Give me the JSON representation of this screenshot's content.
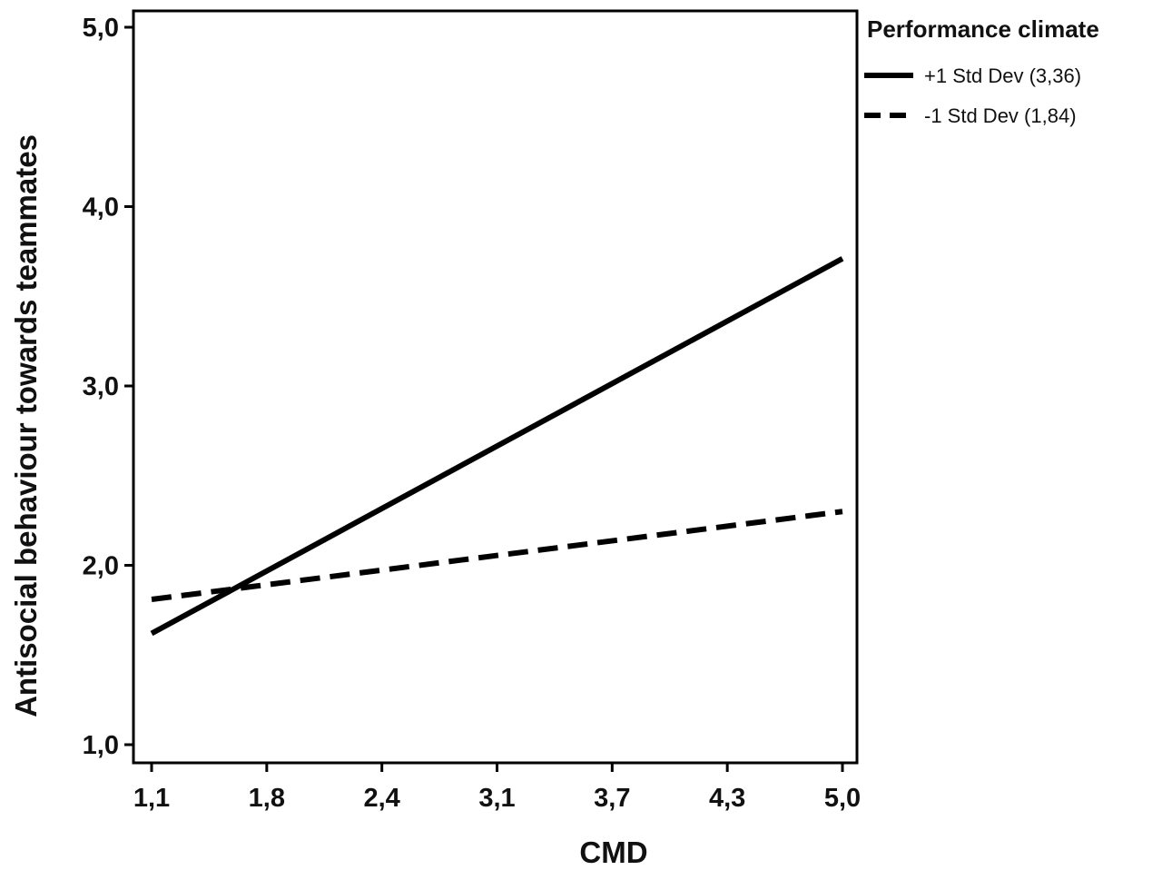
{
  "chart_data": {
    "type": "line",
    "xlabel": "CMD",
    "ylabel": "Antisocial behaviour towards teammates",
    "x_ticks": [
      "1,1",
      "1,8",
      "2,4",
      "3,1",
      "3,7",
      "4,3",
      "5,0"
    ],
    "y_ticks": [
      "1,0",
      "2,0",
      "3,0",
      "4,0",
      "5,0"
    ],
    "xlim": [
      1.1,
      5.0
    ],
    "ylim": [
      1.0,
      5.0
    ],
    "grid": false,
    "legend": {
      "title": "Performance climate",
      "position": "top-right, outside plot"
    },
    "series": [
      {
        "name": "+1 Std Dev (3,36)",
        "style": "solid",
        "color": "#000000",
        "x": [
          1.1,
          5.0
        ],
        "y": [
          1.62,
          3.71
        ]
      },
      {
        "name": "-1 Std Dev (1,84)",
        "style": "dashed",
        "color": "#000000",
        "x": [
          1.1,
          5.0
        ],
        "y": [
          1.81,
          2.3
        ]
      }
    ]
  }
}
